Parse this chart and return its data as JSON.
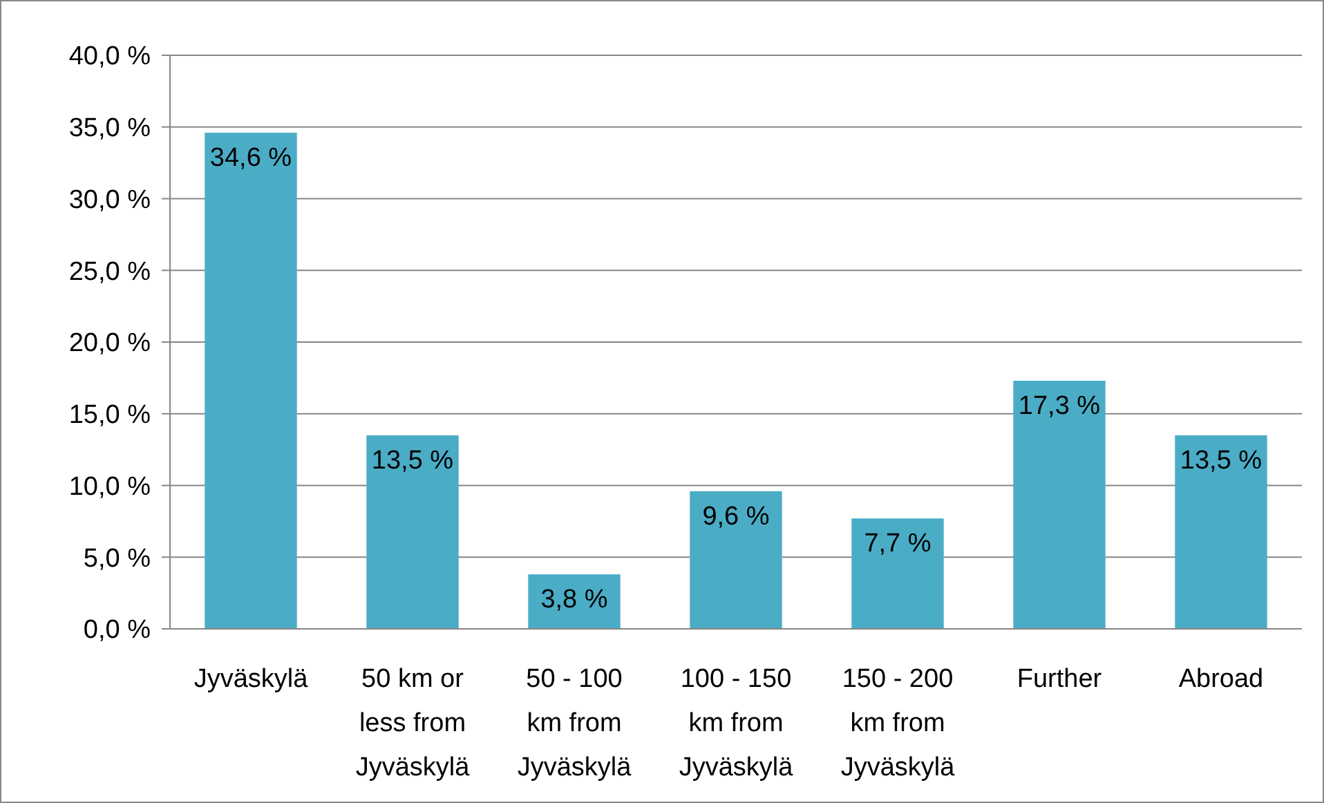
{
  "chart_data": {
    "type": "bar",
    "categories": [
      "Jyväskylä",
      "50 km or less from Jyväskylä",
      "50 - 100 km from Jyväskylä",
      "100 - 150 km from Jyväskylä",
      "150 - 200 km from Jyväskylä",
      "Further",
      "Abroad"
    ],
    "values": [
      34.6,
      13.5,
      3.8,
      9.6,
      7.7,
      17.3,
      13.5
    ],
    "value_labels": [
      "34,6 %",
      "13,5 %",
      "3,8 %",
      "9,6 %",
      "7,7 %",
      "17,3 %",
      "13,5 %"
    ],
    "color": "#4bacc6",
    "ylim": [
      0,
      40
    ],
    "yticks": [
      {
        "value": 0,
        "label": "0,0 %"
      },
      {
        "value": 5,
        "label": "5,0 %"
      },
      {
        "value": 10,
        "label": "10,0 %"
      },
      {
        "value": 15,
        "label": "15,0 %"
      },
      {
        "value": 20,
        "label": "20,0 %"
      },
      {
        "value": 25,
        "label": "25,0 %"
      },
      {
        "value": 30,
        "label": "30,0 %"
      },
      {
        "value": 35,
        "label": "35,0 %"
      },
      {
        "value": 40,
        "label": "40,0 %"
      }
    ],
    "grid": "y"
  }
}
